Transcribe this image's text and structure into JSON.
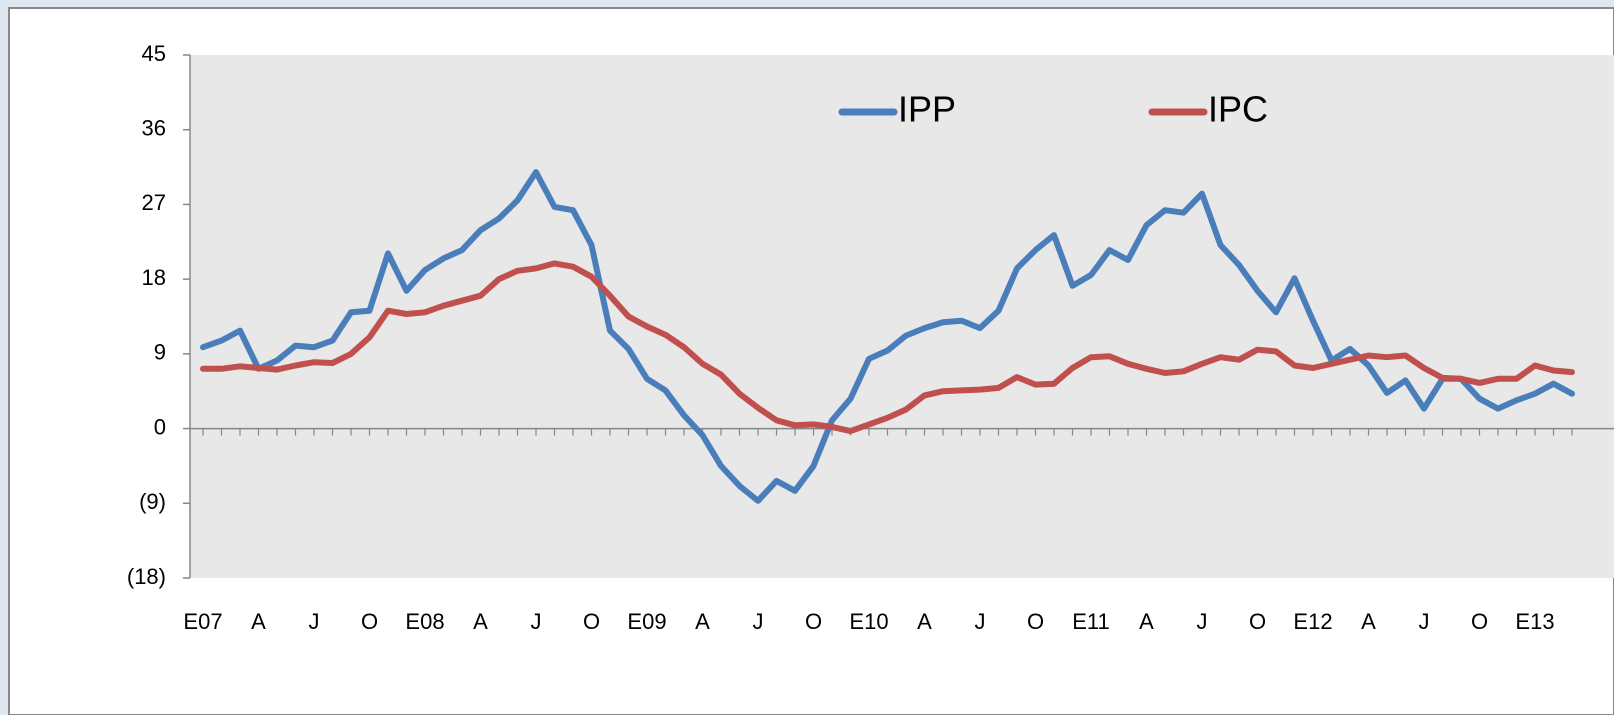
{
  "chart_data": {
    "type": "line",
    "categories": [
      "E07",
      null,
      null,
      "A",
      null,
      null,
      "J",
      null,
      null,
      "O",
      null,
      null,
      "E08",
      null,
      null,
      "A",
      null,
      null,
      "J",
      null,
      null,
      "O",
      null,
      null,
      "E09",
      null,
      null,
      "A",
      null,
      null,
      "J",
      null,
      null,
      "O",
      null,
      null,
      "E10",
      null,
      null,
      "A",
      null,
      null,
      "J",
      null,
      null,
      "O",
      null,
      null,
      "E11",
      null,
      null,
      "A",
      null,
      null,
      "J",
      null,
      null,
      "O",
      null,
      null,
      "E12",
      null,
      null,
      "A",
      null,
      null,
      "J",
      null,
      null,
      "O",
      null,
      null,
      "E13",
      null,
      null
    ],
    "series": [
      {
        "name": "IPP",
        "color": "#4a7ebb",
        "values": [
          9.8,
          10.6,
          11.8,
          7.2,
          8.2,
          10,
          9.8,
          10.6,
          14,
          14.2,
          21.1,
          16.6,
          19.1,
          20.5,
          21.5,
          23.9,
          25.3,
          27.5,
          30.9,
          26.7,
          26.3,
          22.1,
          11.8,
          9.6,
          6,
          4.6,
          1.6,
          -0.8,
          -4.5,
          -6.9,
          -8.7,
          -6.3,
          -7.5,
          -4.5,
          1,
          3.6,
          8.4,
          9.4,
          11.2,
          12.1,
          12.8,
          13,
          12.1,
          14.2,
          19.3,
          21.5,
          23.3,
          17.2,
          18.5,
          21.5,
          20.3,
          24.5,
          26.3,
          26,
          28.3,
          22.1,
          19.7,
          16.6,
          14,
          18.1,
          13,
          8.2,
          9.6,
          7.6,
          4.3,
          5.8,
          2.4,
          6,
          6,
          3.6,
          2.4,
          3.4,
          4.2,
          5.4,
          4.2
        ]
      },
      {
        "name": "IPC",
        "color": "#c0504d",
        "values": [
          7.2,
          7.2,
          7.5,
          7.3,
          7.1,
          7.6,
          8,
          7.9,
          9,
          11,
          14.2,
          13.8,
          14,
          14.8,
          15.4,
          16,
          18,
          19,
          19.3,
          19.9,
          19.5,
          18.3,
          16,
          13.5,
          12.3,
          11.3,
          9.8,
          7.8,
          6.5,
          4.2,
          2.5,
          1,
          0.4,
          0.5,
          0.2,
          -0.3,
          0.5,
          1.3,
          2.3,
          4,
          4.5,
          4.6,
          4.7,
          4.9,
          6.2,
          5.3,
          5.4,
          7.3,
          8.6,
          8.7,
          7.8,
          7.2,
          6.7,
          6.9,
          7.8,
          8.6,
          8.3,
          9.5,
          9.3,
          7.6,
          7.3,
          7.8,
          8.3,
          8.8,
          8.6,
          8.8,
          7.3,
          6.1,
          6,
          5.5,
          6,
          6,
          7.6,
          7,
          6.8
        ]
      }
    ],
    "ylim": [
      -18,
      45
    ],
    "yticks": [
      {
        "value": -18,
        "label": "(18)"
      },
      {
        "value": -9,
        "label": "(9)"
      },
      0,
      9,
      18,
      27,
      36,
      45
    ],
    "grid": false,
    "legend": "top"
  }
}
